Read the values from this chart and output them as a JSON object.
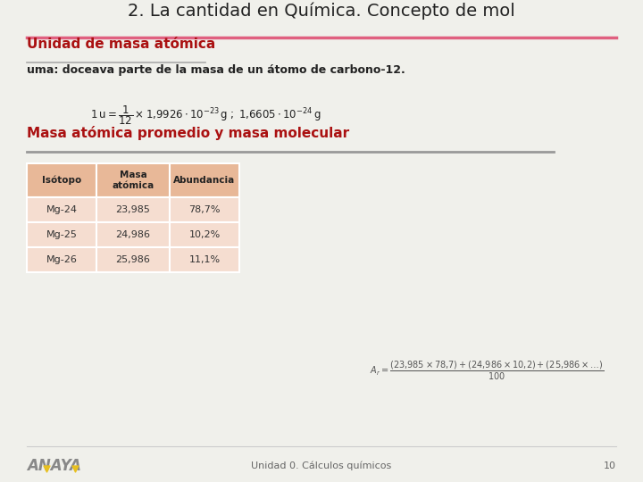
{
  "title": "2. La cantidad en Química. Concepto de mol",
  "title_color": "#222222",
  "title_fontsize": 14,
  "bg_color": "#f0f0eb",
  "section1_title": "Unidad de masa atómica",
  "section1_color": "#aa1111",
  "section1_fontsize": 11,
  "section1_underline_color": "#aaaaaa",
  "body_text": "uma: doceava parte de la masa de un átomo de carbono-12.",
  "body_fontsize": 9,
  "section2_title": "Masa atómica promedio y masa molecular",
  "section2_color": "#aa1111",
  "section2_fontsize": 11,
  "separator_color": "#999999",
  "table_header_bg": "#e8b898",
  "table_row_bg": "#f5ddd0",
  "table_headers": [
    "Isótopo",
    "Masa\natómica",
    "Abundancia"
  ],
  "table_rows": [
    [
      "Mg-24",
      "23,985",
      "78,7%"
    ],
    [
      "Mg-25",
      "24,986",
      "10,2%"
    ],
    [
      "Mg-26",
      "25,986",
      "11,1%"
    ]
  ],
  "footer_text": "Unidad 0. Cálculos químicos",
  "footer_page": "10",
  "footer_fontsize": 8,
  "title_line_color": "#e06080",
  "anaya_color": "#888888",
  "anaya_yellow": "#e8c020",
  "white": "#ffffff"
}
